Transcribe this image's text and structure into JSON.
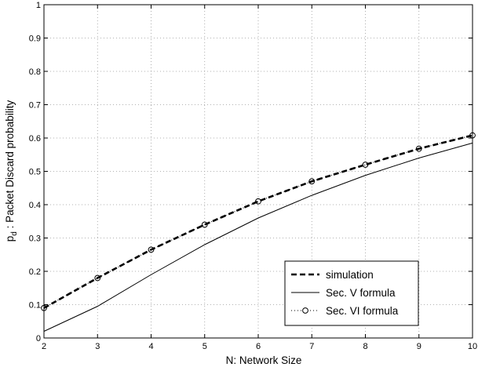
{
  "chart_data": {
    "type": "line",
    "title": "",
    "xlabel": "N: Network Size",
    "ylabel": "p",
    "ylabel_subscript": "d",
    "ylabel_rest": " : Packet Discard probability",
    "xlim": [
      2,
      10
    ],
    "ylim": [
      0,
      1
    ],
    "x_ticks": [
      2,
      3,
      4,
      5,
      6,
      7,
      8,
      9,
      10
    ],
    "y_ticks": [
      0,
      0.1,
      0.2,
      0.3,
      0.4,
      0.5,
      0.6,
      0.7,
      0.8,
      0.9,
      1
    ],
    "y_tick_labels": [
      "0",
      "0.1",
      "0.2",
      "0.3",
      "0.4",
      "0.5",
      "0.6",
      "0.7",
      "0.8",
      "0.9",
      "1"
    ],
    "grid": true,
    "legend_position": "bottom-right",
    "x": [
      2,
      3,
      4,
      5,
      6,
      7,
      8,
      9,
      10
    ],
    "series": [
      {
        "name": "simulation",
        "style": "dashed-thick",
        "values": [
          0.09,
          0.18,
          0.265,
          0.34,
          0.41,
          0.47,
          0.52,
          0.568,
          0.608
        ]
      },
      {
        "name": "Sec. V formula",
        "style": "solid",
        "values": [
          0.02,
          0.095,
          0.19,
          0.28,
          0.36,
          0.428,
          0.488,
          0.54,
          0.585
        ]
      },
      {
        "name": "Sec. VI formula",
        "style": "dotted-circles",
        "values": [
          0.09,
          0.18,
          0.265,
          0.34,
          0.41,
          0.47,
          0.52,
          0.568,
          0.608
        ]
      }
    ],
    "colors": {
      "line": "#000000",
      "grid": "#999999",
      "background": "#ffffff"
    }
  }
}
